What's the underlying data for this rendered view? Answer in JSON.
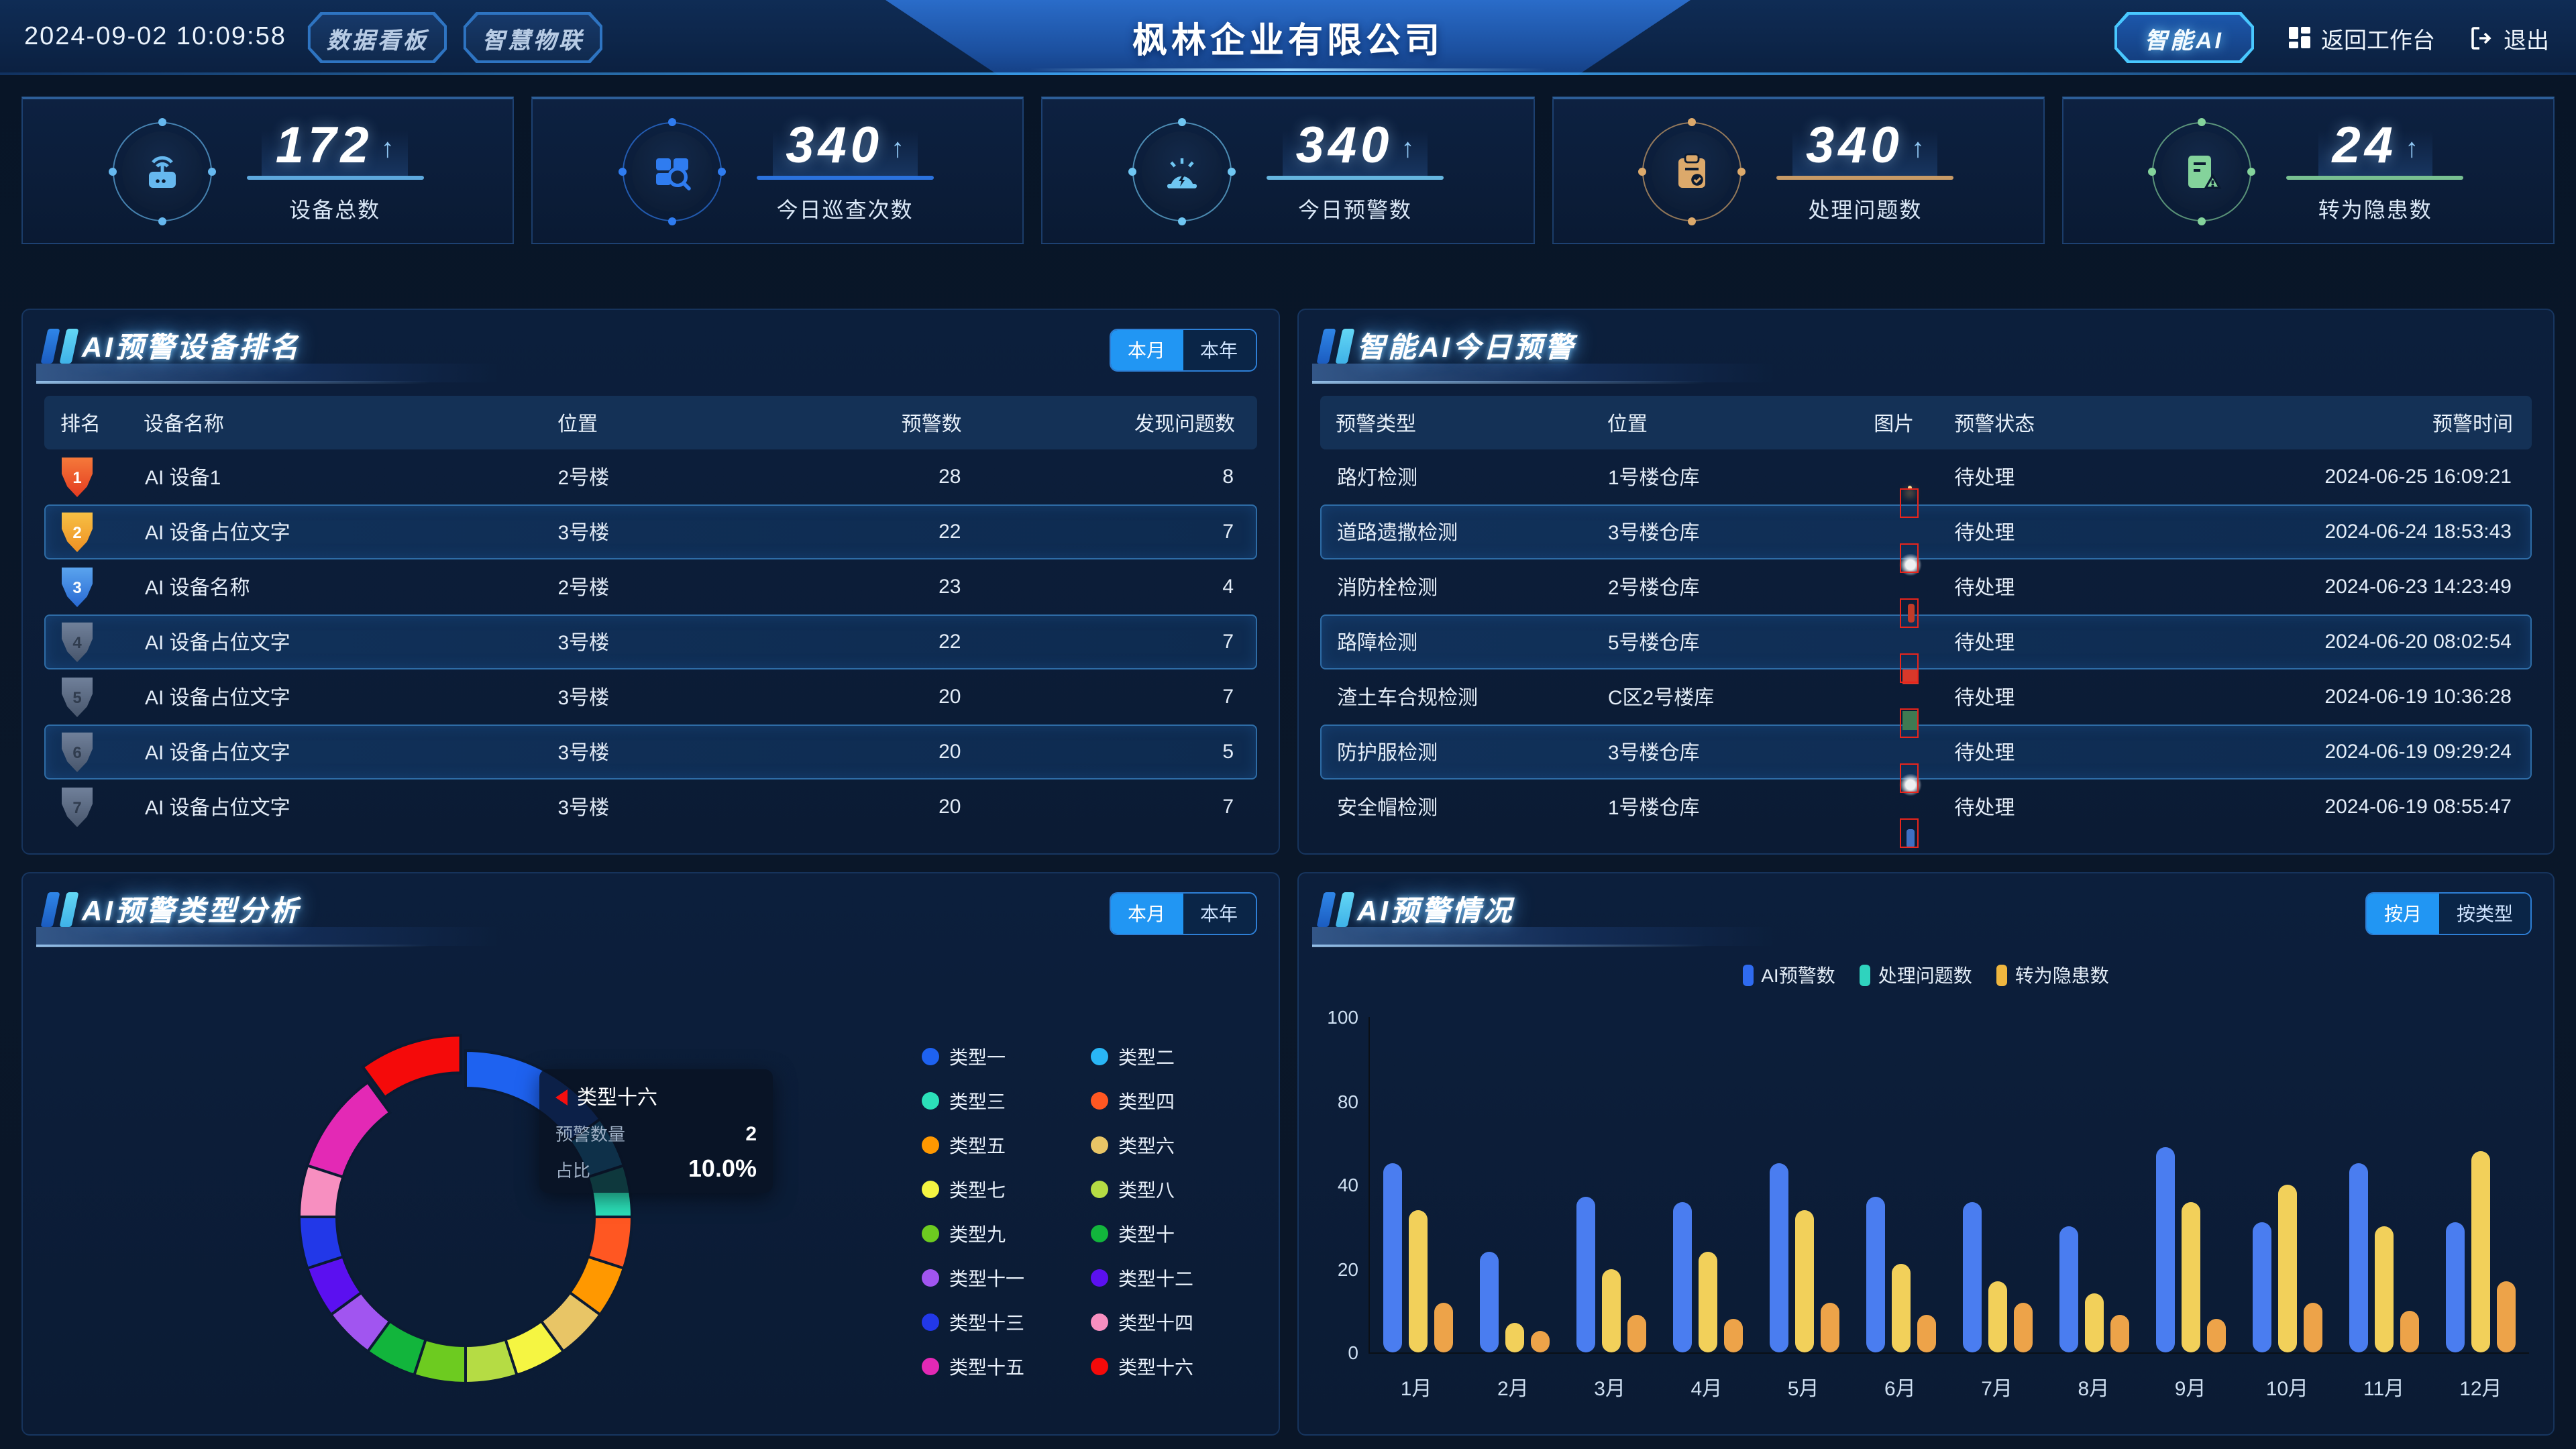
{
  "header": {
    "datetime": "2024-09-02  10:09:58",
    "nav_buttons": [
      {
        "label": "数据看板"
      },
      {
        "label": "智慧物联"
      }
    ],
    "company_title": "枫林企业有限公司",
    "ai_button": "智能AI",
    "workbench_link": "返回工作台",
    "logout_link": "退出"
  },
  "stats": [
    {
      "icon": "device-icon",
      "value": "172",
      "label": "设备总数",
      "accent": "#66b8ef"
    },
    {
      "icon": "inspection-icon",
      "value": "340",
      "label": "今日巡查次数",
      "accent": "#2f7cf0"
    },
    {
      "icon": "alarm-icon",
      "value": "340",
      "label": "今日预警数",
      "accent": "#6fc6f2"
    },
    {
      "icon": "clipboard-icon",
      "value": "340",
      "label": "处理问题数",
      "accent": "#dca96b"
    },
    {
      "icon": "hazard-icon",
      "value": "24",
      "label": "转为隐患数",
      "accent": "#84d39b"
    }
  ],
  "device_ranking": {
    "title": "AI预警设备排名",
    "tabs": [
      {
        "label": "本月",
        "active": true
      },
      {
        "label": "本年",
        "active": false
      }
    ],
    "columns": [
      "排名",
      "设备名称",
      "位置",
      "预警数",
      "发现问题数"
    ],
    "rows": [
      {
        "rank": "1",
        "name": "AI 设备1",
        "location": "2号楼",
        "warnings": "28",
        "issues": "8",
        "highlighted": false
      },
      {
        "rank": "2",
        "name": "AI 设备占位文字",
        "location": "3号楼",
        "warnings": "22",
        "issues": "7",
        "highlighted": true
      },
      {
        "rank": "3",
        "name": "AI 设备名称",
        "location": "2号楼",
        "warnings": "23",
        "issues": "4",
        "highlighted": false
      },
      {
        "rank": "4",
        "name": "AI 设备占位文字",
        "location": "3号楼",
        "warnings": "22",
        "issues": "7",
        "highlighted": true
      },
      {
        "rank": "5",
        "name": "AI 设备占位文字",
        "location": "3号楼",
        "warnings": "20",
        "issues": "7",
        "highlighted": false
      },
      {
        "rank": "6",
        "name": "AI 设备占位文字",
        "location": "3号楼",
        "warnings": "20",
        "issues": "5",
        "highlighted": true
      },
      {
        "rank": "7",
        "name": "AI 设备占位文字",
        "location": "3号楼",
        "warnings": "20",
        "issues": "7",
        "highlighted": false
      }
    ]
  },
  "today_warnings": {
    "title": "智能AI今日预警",
    "columns": [
      "预警类型",
      "位置",
      "图片",
      "预警状态",
      "预警时间"
    ],
    "rows": [
      {
        "type": "路灯检测",
        "location": "1号楼仓库",
        "image": "night-streetlight",
        "status": "待处理",
        "time": "2024-06-25 16:09:21",
        "highlighted": false
      },
      {
        "type": "道路遗撒检测",
        "location": "3号楼仓库",
        "image": "road-debris",
        "status": "待处理",
        "time": "2024-06-24 18:53:43",
        "highlighted": true
      },
      {
        "type": "消防栓检测",
        "location": "2号楼仓库",
        "image": "fire-hydrant",
        "status": "待处理",
        "time": "2024-06-23 14:23:49",
        "highlighted": false
      },
      {
        "type": "路障检测",
        "location": "5号楼仓库",
        "image": "road-barrier",
        "status": "待处理",
        "time": "2024-06-20 08:02:54",
        "highlighted": true
      },
      {
        "type": "渣土车合规检测",
        "location": "C区2号楼库",
        "image": "dump-truck",
        "status": "待处理",
        "time": "2024-06-19 10:36:28",
        "highlighted": false
      },
      {
        "type": "防护服检测",
        "location": "3号楼仓库",
        "image": "road-debris",
        "status": "待处理",
        "time": "2024-06-19 09:29:24",
        "highlighted": true
      },
      {
        "type": "安全帽检测",
        "location": "1号楼仓库",
        "image": "worker",
        "status": "待处理",
        "time": "2024-06-19 08:55:47",
        "highlighted": false
      }
    ]
  },
  "type_analysis": {
    "title": "AI预警类型分析",
    "tabs": [
      {
        "label": "本月",
        "active": true
      },
      {
        "label": "本年",
        "active": false
      }
    ],
    "tooltip": {
      "name": "类型十六",
      "row1_label": "预警数量",
      "row1_value": "2",
      "row2_label": "占比",
      "row2_value": "10.0%"
    }
  },
  "warning_overview": {
    "title": "AI预警情况",
    "tabs": [
      {
        "label": "按月",
        "active": true
      },
      {
        "label": "按类型",
        "active": false
      }
    ]
  },
  "chart_data": [
    {
      "type": "pie",
      "subtype": "donut",
      "title": "AI预警类型分析",
      "labels": [
        "类型一",
        "类型二",
        "类型三",
        "类型四",
        "类型五",
        "类型六",
        "类型七",
        "类型八",
        "类型九",
        "类型十",
        "类型十一",
        "类型十二",
        "类型十三",
        "类型十四",
        "类型十五",
        "类型十六"
      ],
      "values": [
        3,
        1,
        1,
        1,
        1,
        1,
        1,
        1,
        1,
        1,
        1,
        1,
        1,
        1,
        2,
        2
      ],
      "colors": [
        "#1E62F0",
        "#29B6F6",
        "#2BE0B9",
        "#FF5722",
        "#FF9800",
        "#E8C566",
        "#F5F542",
        "#B5DC44",
        "#6DCB20",
        "#12B53C",
        "#A155F0",
        "#5B10F0",
        "#2238E8",
        "#F78FC0",
        "#E329B5",
        "#F50A0A"
      ],
      "highlighted_slice": "类型十六",
      "tooltip": {
        "name": "类型十六",
        "count": 2,
        "percent": "10.0%"
      },
      "legend_position": "right"
    },
    {
      "type": "bar",
      "title": "AI预警情况",
      "categories": [
        "1月",
        "2月",
        "3月",
        "4月",
        "5月",
        "6月",
        "7月",
        "8月",
        "9月",
        "10月",
        "11月",
        "12月"
      ],
      "series": [
        {
          "name": "AI预警数",
          "color": "#4A7DF0",
          "legend_color": "#2F6BF0",
          "values": [
            45,
            24,
            37,
            36,
            45,
            37,
            36,
            30,
            49,
            31,
            45,
            31
          ]
        },
        {
          "name": "处理问题数",
          "color": "#F2D05A",
          "legend_color": "#2FD3BE",
          "values": [
            34,
            7,
            20,
            24,
            34,
            21,
            17,
            14,
            36,
            40,
            30,
            48
          ]
        },
        {
          "name": "转为隐患数",
          "color": "#EDA349",
          "legend_color": "#EFB63F",
          "values": [
            12,
            5,
            9,
            8,
            12,
            9,
            12,
            9,
            8,
            12,
            10,
            17
          ]
        }
      ],
      "ylim": [
        0,
        80
      ],
      "ytick_labels": [
        "0",
        "20",
        "40",
        "80",
        "100"
      ],
      "grid": false,
      "legend_position": "top"
    }
  ]
}
